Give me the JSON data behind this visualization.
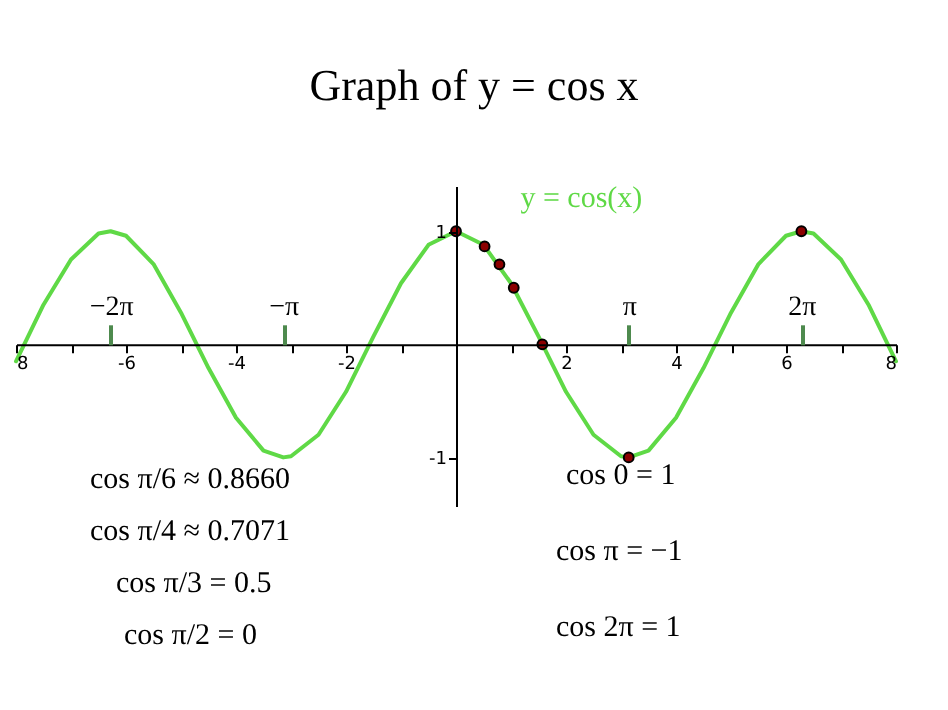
{
  "chart_data": {
    "type": "line",
    "title": "Graph of y = cos x",
    "series": [
      {
        "name": "y = cos(x)",
        "color": "#5fd946",
        "x": [
          -8,
          -7.5,
          -7,
          -6.5,
          -6.28,
          -6,
          -5.5,
          -5,
          -4.5,
          -4,
          -3.5,
          -3.14,
          -3,
          -2.5,
          -2,
          -1.5,
          -1,
          -0.5,
          0,
          0.5,
          1,
          1.5,
          2,
          2.5,
          3,
          3.14,
          3.5,
          4,
          4.5,
          5,
          5.5,
          6,
          6.28,
          6.5,
          7,
          7.5,
          8
        ],
        "values": [
          -0.15,
          0.35,
          0.75,
          0.98,
          1,
          0.96,
          0.71,
          0.28,
          -0.21,
          -0.65,
          -0.94,
          -1,
          -0.99,
          -0.8,
          -0.42,
          0.07,
          0.54,
          0.88,
          1,
          0.88,
          0.54,
          0.07,
          -0.42,
          -0.8,
          -0.99,
          -1,
          -0.94,
          -0.65,
          -0.21,
          0.28,
          0.71,
          0.96,
          1,
          0.98,
          0.75,
          0.35,
          -0.15
        ]
      },
      {
        "type": "scatter",
        "color": "#8b0000",
        "marker": "circle",
        "x": [
          0,
          0.52,
          0.79,
          1.05,
          1.57,
          3.14,
          6.28
        ],
        "values": [
          1,
          0.866,
          0.707,
          0.5,
          0,
          -1,
          1
        ]
      }
    ],
    "xlim": [
      -8,
      8
    ],
    "ylim": [
      -1.43,
      1.4
    ],
    "xticks": [
      {
        "value": -8,
        "label": "8"
      },
      {
        "value": -7,
        "label": null
      },
      -6,
      {
        "value": -5,
        "label": null
      },
      -4,
      {
        "value": -3,
        "label": null
      },
      -2,
      {
        "value": -1,
        "label": null
      },
      {
        "value": 0,
        "label": null
      },
      {
        "value": 1,
        "label": null
      },
      2,
      {
        "value": 3,
        "label": null
      },
      4,
      {
        "value": 5,
        "label": null
      },
      6,
      {
        "value": 7,
        "label": null
      },
      8
    ],
    "x2lim": [
      -8,
      8
    ],
    "x2ticks": [
      {
        "value": -6.28,
        "label": "−2π"
      },
      {
        "value": -3.14,
        "label": "−π"
      },
      {
        "value": 3.14,
        "label": "π"
      },
      {
        "value": 6.28,
        "label": "2π"
      }
    ],
    "yticks": [
      -1,
      1
    ],
    "grid": false,
    "legend": "top",
    "marker": "none",
    "line_style": "solid",
    "annotations": [
      "cos π/6 ≈ 0.8660",
      "cos π/4 ≈ 0.7071",
      "cos π/3 = 0.5",
      "cos π/2 = 0",
      "cos 0 = 1",
      "cos π = −1",
      "cos 2π = 1"
    ]
  }
}
